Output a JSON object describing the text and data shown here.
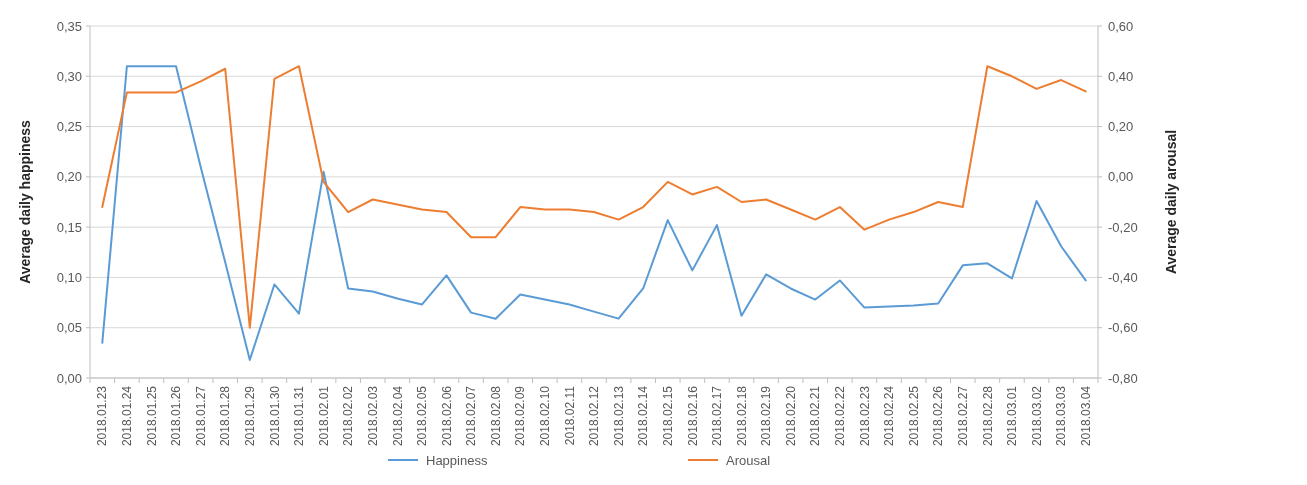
{
  "chart_data": {
    "type": "line",
    "ylabel": "Average daily happiness",
    "y2label": "Average daily arousal",
    "categories": [
      "2018.01.23",
      "2018.01.24",
      "2018.01.25",
      "2018.01.26",
      "2018.01.27",
      "2018.01.28",
      "2018.01.29",
      "2018.01.30",
      "2018.01.31",
      "2018.02.01",
      "2018.02.02",
      "2018.02.03",
      "2018.02.04",
      "2018.02.05",
      "2018.02.06",
      "2018.02.07",
      "2018.02.08",
      "2018.02.09",
      "2018.02.10",
      "2018.02.11",
      "2018.02.12",
      "2018.02.13",
      "2018.02.14",
      "2018.02.15",
      "2018.02.16",
      "2018.02.17",
      "2018.02.18",
      "2018.02.19",
      "2018.02.20",
      "2018.02.21",
      "2018.02.22",
      "2018.02.23",
      "2018.02.24",
      "2018.02.25",
      "2018.02.26",
      "2018.02.27",
      "2018.02.28",
      "2018.03.01",
      "2018.03.02",
      "2018.03.03",
      "2018.03.04"
    ],
    "series": [
      {
        "name": "Happiness",
        "color": "#5b9bd5",
        "values": [
          0.035,
          0.31,
          0.31,
          0.31,
          0.21,
          0.115,
          0.018,
          0.093,
          0.064,
          0.205,
          0.089,
          0.086,
          0.079,
          0.073,
          0.102,
          0.065,
          0.059,
          0.083,
          0.078,
          0.073,
          0.066,
          0.059,
          0.089,
          0.157,
          0.107,
          0.152,
          0.062,
          0.103,
          0.089,
          0.078,
          0.097,
          0.07,
          0.071,
          0.072,
          0.074,
          0.112,
          0.114,
          0.099,
          0.176,
          0.131,
          0.097
        ]
      },
      {
        "name": "Arousal",
        "color": "#ed7d31",
        "axis": "y2",
        "values": [
          -0.12,
          0.336,
          0.336,
          0.336,
          0.38,
          0.43,
          -0.6,
          0.39,
          0.44,
          -0.02,
          -0.14,
          -0.09,
          -0.11,
          -0.13,
          -0.14,
          -0.24,
          -0.24,
          -0.12,
          -0.13,
          -0.13,
          -0.14,
          -0.17,
          -0.12,
          -0.02,
          -0.07,
          -0.04,
          -0.1,
          -0.09,
          -0.13,
          -0.17,
          -0.12,
          -0.21,
          -0.17,
          -0.14,
          -0.1,
          -0.12,
          0.44,
          0.4,
          0.35,
          0.385,
          0.34
        ]
      }
    ],
    "ylim": [
      0,
      0.35
    ],
    "yticks": [
      {
        "value": 0,
        "label": "0,00"
      },
      {
        "value": 0.05,
        "label": "0,05"
      },
      {
        "value": 0.1,
        "label": "0,10"
      },
      {
        "value": 0.15,
        "label": "0,15"
      },
      {
        "value": 0.2,
        "label": "0,20"
      },
      {
        "value": 0.25,
        "label": "0,25"
      },
      {
        "value": 0.3,
        "label": "0,30"
      },
      {
        "value": 0.35,
        "label": "0,35"
      }
    ],
    "y2lim": [
      -0.8,
      0.6
    ],
    "y2ticks": [
      {
        "value": -0.8,
        "label": "-0,80"
      },
      {
        "value": -0.6,
        "label": "-0,60"
      },
      {
        "value": -0.4,
        "label": "-0,40"
      },
      {
        "value": -0.2,
        "label": "-0,20"
      },
      {
        "value": 0,
        "label": "0,00"
      },
      {
        "value": 0.2,
        "label": "0,20"
      },
      {
        "value": 0.4,
        "label": "0,40"
      },
      {
        "value": 0.6,
        "label": "0,60"
      }
    ],
    "grid": "y",
    "legend": "bottom",
    "marker": "none",
    "line_style": "solid"
  }
}
